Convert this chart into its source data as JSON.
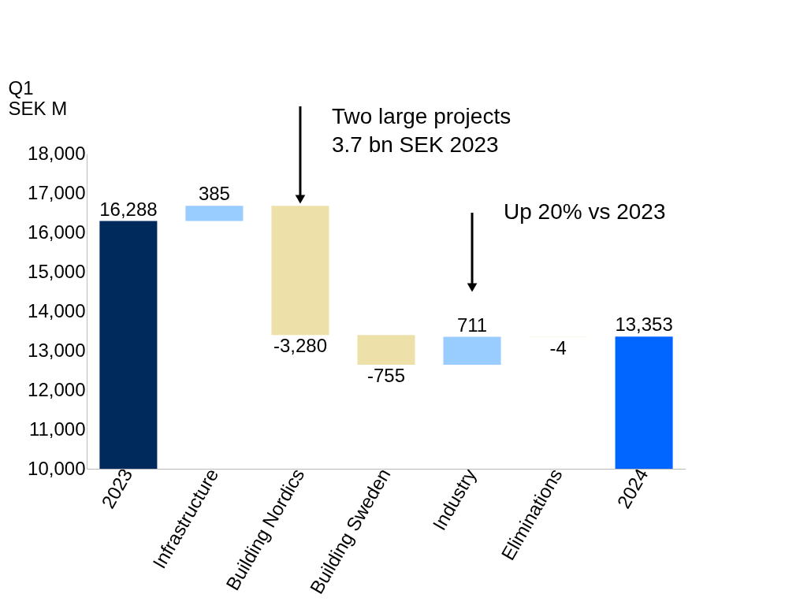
{
  "chart_data": {
    "type": "bar",
    "ylabel": "Q1\nSEK M",
    "categories": [
      "2023",
      "Infrastructure",
      "Building Nordics",
      "Building Sweden",
      "Industry",
      "Eliminations",
      "2024"
    ],
    "values": [
      6288,
      385,
      -3280,
      -755,
      711,
      -4,
      3353
    ],
    "base": [
      10000,
      16288,
      16673,
      13393,
      12638,
      13349,
      10000
    ],
    "value_labels": [
      "16,288",
      "385",
      "-3,280",
      "-755",
      "711",
      "-4",
      "13,353"
    ],
    "colors": [
      "#002a5c",
      "#99ccff",
      "#ede0a8",
      "#ede0a8",
      "#99ccff",
      "#ede0a8",
      "#0066ff"
    ],
    "ylim": [
      10000,
      18000
    ],
    "yticks": [
      {
        "value": 10000,
        "label": "10,000"
      },
      {
        "value": 11000,
        "label": "11,000"
      },
      {
        "value": 12000,
        "label": "12,000"
      },
      {
        "value": 13000,
        "label": "13,000"
      },
      {
        "value": 14000,
        "label": "14,000"
      },
      {
        "value": 15000,
        "label": "15,000"
      },
      {
        "value": 16000,
        "label": "16,000"
      },
      {
        "value": 17000,
        "label": "17,000"
      },
      {
        "value": 18000,
        "label": "18,000"
      }
    ],
    "grid": false,
    "annotations": [
      "Two large projects\n3.7 bn SEK 2023",
      "Up 20% vs 2023"
    ]
  }
}
